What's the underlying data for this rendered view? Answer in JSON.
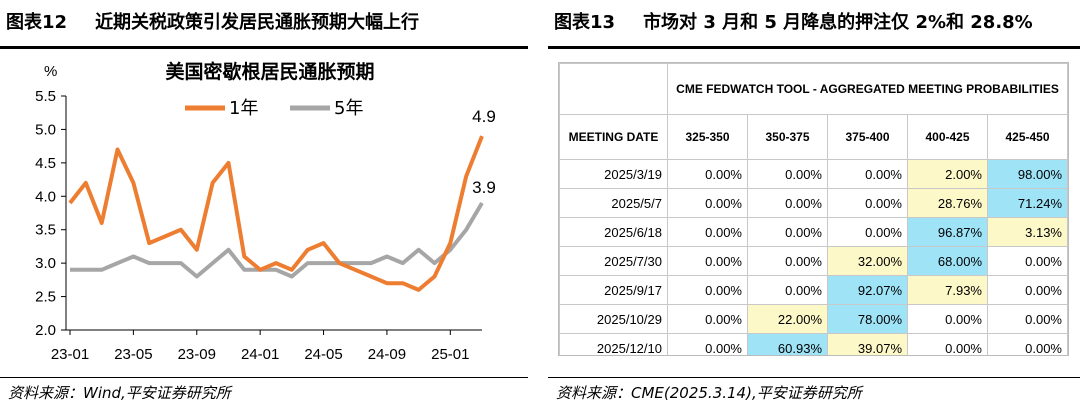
{
  "left": {
    "figure_no": "图表12",
    "figure_title": "近期关税政策引发居民通胀预期大幅上行",
    "source": "资料来源：Wind,平安证券研究所"
  },
  "right": {
    "figure_no": "图表13",
    "figure_title": "市场对 3 月和 5 月降息的押注仅 2%和 28.8%",
    "source": "资料来源：CME(2025.3.14),平安证券研究所"
  },
  "chart_data": {
    "type": "line",
    "title": "美国密歇根居民通胀预期",
    "ylabel": "%",
    "ylim": [
      2.0,
      5.5
    ],
    "yticks": [
      "5.5",
      "5.0",
      "4.5",
      "4.0",
      "3.5",
      "3.0",
      "2.5",
      "2.0"
    ],
    "xticks": [
      "23-01",
      "23-05",
      "23-09",
      "24-01",
      "24-05",
      "24-09",
      "25-01"
    ],
    "legend_position": "top",
    "series": [
      {
        "name": "1年",
        "color": "#ed7d31",
        "values": [
          3.9,
          4.2,
          3.6,
          4.7,
          4.2,
          3.3,
          3.4,
          3.5,
          3.2,
          4.2,
          4.5,
          3.1,
          2.9,
          3.0,
          2.9,
          3.2,
          3.3,
          3.0,
          2.9,
          2.8,
          2.7,
          2.7,
          2.6,
          2.8,
          3.3,
          4.3,
          4.9
        ]
      },
      {
        "name": "5年",
        "color": "#a6a6a6",
        "values": [
          2.9,
          2.9,
          2.9,
          3.0,
          3.1,
          3.0,
          3.0,
          3.0,
          2.8,
          3.0,
          3.2,
          2.9,
          2.9,
          2.9,
          2.8,
          3.0,
          3.0,
          3.0,
          3.0,
          3.0,
          3.1,
          3.0,
          3.2,
          3.0,
          3.2,
          3.5,
          3.9
        ]
      }
    ],
    "end_labels": [
      "4.9",
      "3.9"
    ]
  },
  "table": {
    "banner": "CME FEDWATCH TOOL - AGGREGATED MEETING PROBABILITIES",
    "headers": [
      "MEETING DATE",
      "325-350",
      "350-375",
      "375-400",
      "400-425",
      "425-450"
    ],
    "rows": [
      [
        "2025/3/19",
        "0.00%",
        "0.00%",
        "0.00%",
        "2.00%",
        "98.00%"
      ],
      [
        "2025/5/7",
        "0.00%",
        "0.00%",
        "0.00%",
        "28.76%",
        "71.24%"
      ],
      [
        "2025/6/18",
        "0.00%",
        "0.00%",
        "0.00%",
        "96.87%",
        "3.13%"
      ],
      [
        "2025/7/30",
        "0.00%",
        "0.00%",
        "32.00%",
        "68.00%",
        "0.00%"
      ],
      [
        "2025/9/17",
        "0.00%",
        "0.00%",
        "92.07%",
        "7.93%",
        "0.00%"
      ],
      [
        "2025/10/29",
        "0.00%",
        "22.00%",
        "78.00%",
        "0.00%",
        "0.00%"
      ],
      [
        "2025/12/10",
        "0.00%",
        "60.93%",
        "39.07%",
        "0.00%",
        "0.00%"
      ]
    ],
    "highlight": [
      [
        "",
        "",
        "",
        "",
        "y",
        "b"
      ],
      [
        "",
        "",
        "",
        "",
        "y",
        "b"
      ],
      [
        "",
        "",
        "",
        "",
        "b",
        "y"
      ],
      [
        "",
        "",
        "",
        "y",
        "b",
        ""
      ],
      [
        "",
        "",
        "",
        "b",
        "y",
        ""
      ],
      [
        "",
        "",
        "y",
        "b",
        "",
        ""
      ],
      [
        "",
        "",
        "b",
        "y",
        "",
        ""
      ]
    ]
  }
}
